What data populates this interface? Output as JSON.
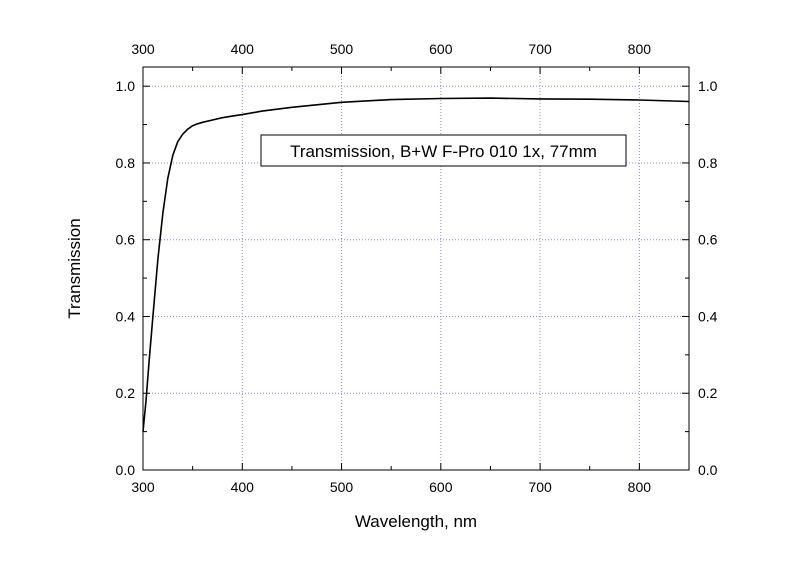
{
  "chart_data": {
    "type": "line",
    "title": "",
    "xlabel": "Wavelength, nm",
    "ylabel": "Transmission",
    "xlim": [
      300,
      850
    ],
    "ylim": [
      0.0,
      1.05
    ],
    "x_ticks": [
      300,
      400,
      500,
      600,
      700,
      800
    ],
    "y_ticks": [
      0.0,
      0.2,
      0.4,
      0.6,
      0.8,
      1.0
    ],
    "x_tick_labels": [
      "300",
      "400",
      "500",
      "600",
      "700",
      "800"
    ],
    "y_tick_labels": [
      "0.0",
      "0.2",
      "0.4",
      "0.6",
      "0.8",
      "1.0"
    ],
    "top_axis_mirrored": true,
    "right_axis_mirrored": true,
    "grid": true,
    "annotation": "Transmission, B+W F-Pro 010 1x, 77mm",
    "series": [
      {
        "color": "#000000",
        "x": [
          300,
          303,
          306,
          310,
          315,
          320,
          325,
          330,
          335,
          340,
          345,
          350,
          355,
          360,
          370,
          380,
          390,
          400,
          420,
          450,
          500,
          550,
          600,
          650,
          700,
          750,
          800,
          850
        ],
        "y": [
          0.1,
          0.18,
          0.28,
          0.4,
          0.55,
          0.67,
          0.76,
          0.82,
          0.855,
          0.875,
          0.888,
          0.897,
          0.902,
          0.906,
          0.912,
          0.918,
          0.922,
          0.926,
          0.935,
          0.945,
          0.958,
          0.965,
          0.968,
          0.969,
          0.967,
          0.966,
          0.964,
          0.96
        ]
      }
    ]
  }
}
